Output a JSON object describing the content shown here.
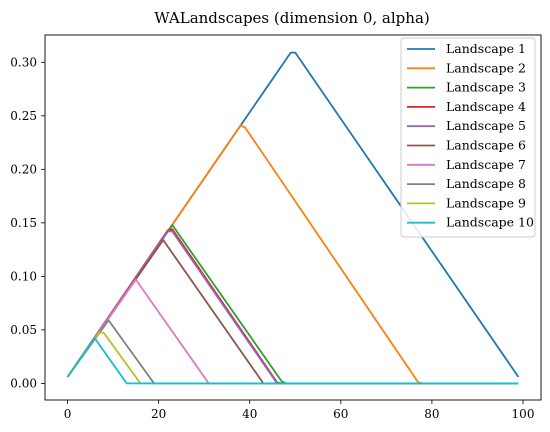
{
  "chart_data": {
    "type": "line",
    "title": "WALandscapes (dimension 0, alpha)",
    "xlabel": "",
    "ylabel": "",
    "xlim": [
      -4.95,
      103.95
    ],
    "ylim": [
      -0.0155,
      0.3255
    ],
    "xticks": [
      0,
      20,
      40,
      60,
      80,
      100
    ],
    "xtick_labels": [
      "0",
      "20",
      "40",
      "60",
      "80",
      "100"
    ],
    "yticks": [
      0.0,
      0.05,
      0.1,
      0.15,
      0.2,
      0.25,
      0.3
    ],
    "ytick_labels": [
      "0.00",
      "0.05",
      "0.10",
      "0.15",
      "0.20",
      "0.25",
      "0.30"
    ],
    "grid": false,
    "legend_position": "top-right",
    "series": [
      {
        "name": "Landscape 1",
        "color": "#1f77b4",
        "points": [
          [
            0,
            0.006
          ],
          [
            49,
            0.309
          ],
          [
            50,
            0.309
          ],
          [
            99,
            0.006
          ]
        ]
      },
      {
        "name": "Landscape 2",
        "color": "#ff7f0e",
        "points": [
          [
            0,
            0.006
          ],
          [
            38,
            0.241
          ],
          [
            39,
            0.239
          ],
          [
            77,
            0.001
          ],
          [
            78,
            0.0
          ],
          [
            99,
            0.0
          ]
        ]
      },
      {
        "name": "Landscape 3",
        "color": "#2ca02c",
        "points": [
          [
            0,
            0.006
          ],
          [
            23,
            0.148
          ],
          [
            47,
            0.002
          ],
          [
            48,
            0.0
          ],
          [
            99,
            0.0
          ]
        ]
      },
      {
        "name": "Landscape 4",
        "color": "#d62728",
        "points": [
          [
            0,
            0.006
          ],
          [
            22,
            0.143
          ],
          [
            23,
            0.144
          ],
          [
            46,
            0.001
          ],
          [
            47,
            0.0
          ],
          [
            99,
            0.0
          ]
        ]
      },
      {
        "name": "Landscape 5",
        "color": "#9467bd",
        "points": [
          [
            0,
            0.006
          ],
          [
            22,
            0.142
          ],
          [
            23,
            0.142
          ],
          [
            46,
            0.0
          ],
          [
            99,
            0.0
          ]
        ]
      },
      {
        "name": "Landscape 6",
        "color": "#8c564b",
        "points": [
          [
            0,
            0.006
          ],
          [
            21,
            0.134
          ],
          [
            43,
            0.0
          ],
          [
            99,
            0.0
          ]
        ]
      },
      {
        "name": "Landscape 7",
        "color": "#e377c2",
        "points": [
          [
            0,
            0.006
          ],
          [
            15,
            0.097
          ],
          [
            31,
            0.0
          ],
          [
            99,
            0.0
          ]
        ]
      },
      {
        "name": "Landscape 8",
        "color": "#7f7f7f",
        "points": [
          [
            0,
            0.006
          ],
          [
            9,
            0.059
          ],
          [
            19,
            0.0
          ],
          [
            99,
            0.0
          ]
        ]
      },
      {
        "name": "Landscape 9",
        "color": "#bcbd22",
        "points": [
          [
            0,
            0.006
          ],
          [
            7,
            0.048
          ],
          [
            8,
            0.047
          ],
          [
            16,
            0.0
          ],
          [
            99,
            0.0
          ]
        ]
      },
      {
        "name": "Landscape 10",
        "color": "#17becf",
        "points": [
          [
            0,
            0.006
          ],
          [
            6,
            0.042
          ],
          [
            13,
            0.0
          ],
          [
            99,
            0.0
          ]
        ]
      }
    ]
  }
}
